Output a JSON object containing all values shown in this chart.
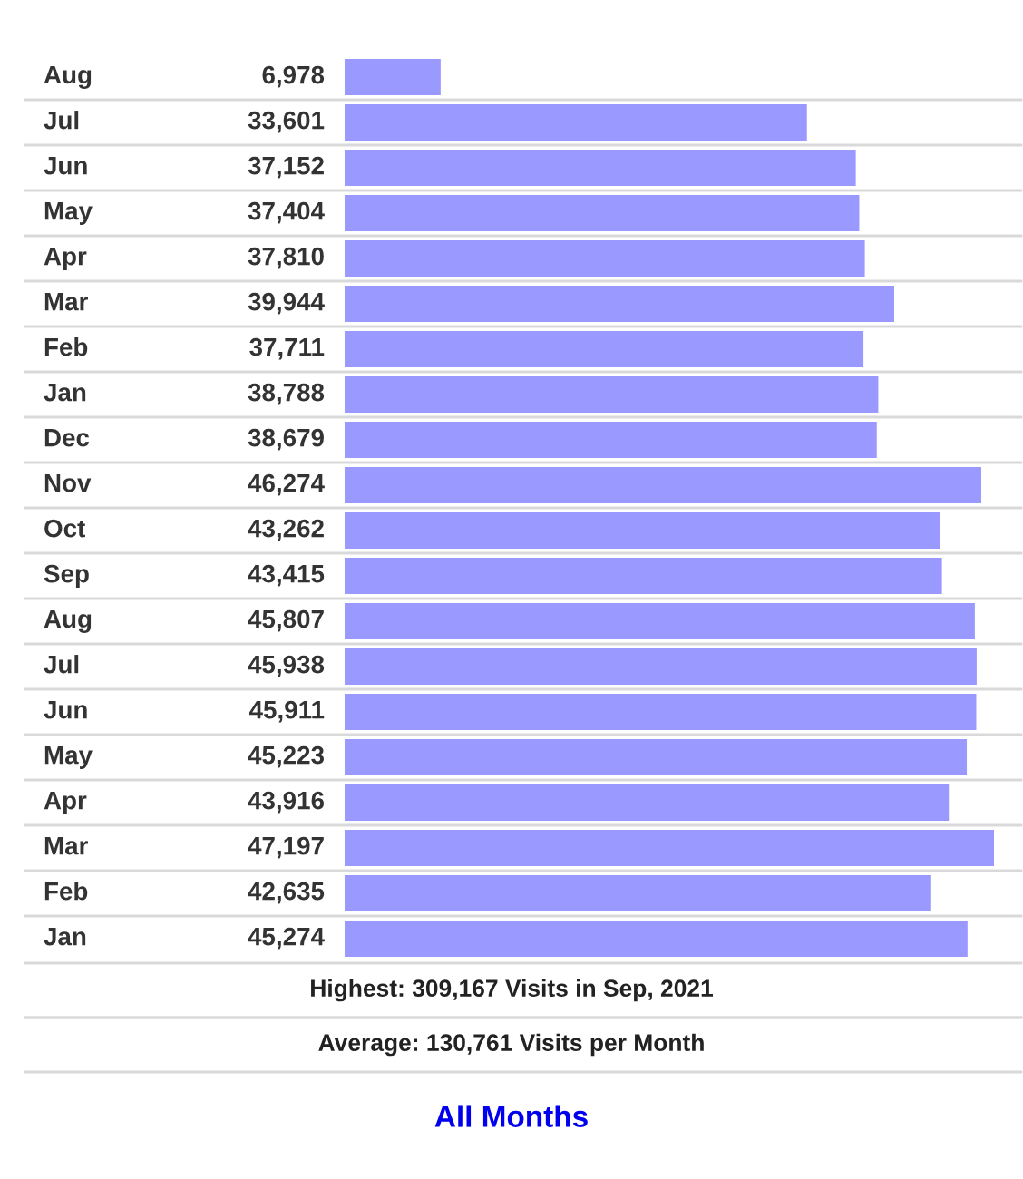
{
  "chart_data": {
    "type": "bar",
    "orientation": "horizontal",
    "color": "#9999ff",
    "value_labels": [
      "6,978",
      "33,601",
      "37,152",
      "37,404",
      "37,810",
      "39,944",
      "37,711",
      "38,788",
      "38,679",
      "46,274",
      "43,262",
      "43,415",
      "45,807",
      "45,938",
      "45,911",
      "45,223",
      "43,916",
      "47,197",
      "42,635",
      "45,274"
    ],
    "categories": [
      "Aug",
      "Jul",
      "Jun",
      "May",
      "Apr",
      "Mar",
      "Feb",
      "Jan",
      "Dec",
      "Nov",
      "Oct",
      "Sep",
      "Aug",
      "Jul",
      "Jun",
      "May",
      "Apr",
      "Mar",
      "Feb",
      "Jan"
    ],
    "values": [
      6978,
      33601,
      37152,
      37404,
      37810,
      39944,
      37711,
      38788,
      38679,
      46274,
      43262,
      43415,
      45807,
      45938,
      45911,
      45223,
      43916,
      47197,
      42635,
      45274
    ],
    "annotations": [
      "Highest: 309,167 Visits in Sep, 2021",
      "Average: 130,761 Visits per Month",
      "All Months"
    ]
  }
}
